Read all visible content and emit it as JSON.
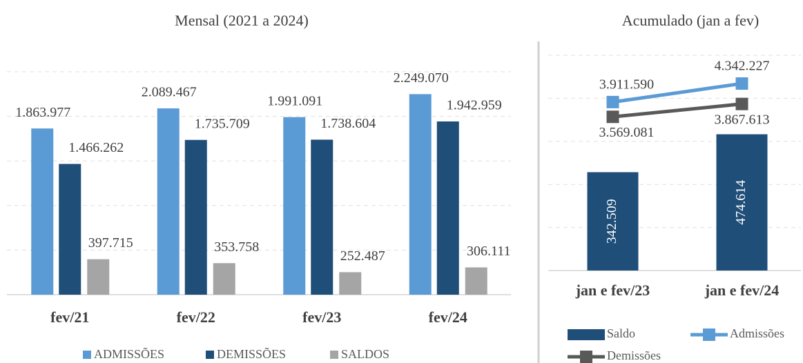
{
  "chart_data": [
    {
      "type": "bar",
      "subtitle": "Mensal (2021 a 2024)",
      "categories": [
        "fev/21",
        "fev/22",
        "fev/23",
        "fev/24"
      ],
      "series": [
        {
          "name": "ADMISSÕES",
          "color": "#5b9bd5",
          "values": [
            1863977,
            2089467,
            1991091,
            2249070
          ],
          "value_labels": [
            "1.863.977",
            "2.089.467",
            "1.991.091",
            "2.249.070"
          ]
        },
        {
          "name": "DEMISSÕES",
          "color": "#1f4e79",
          "values": [
            1466262,
            1735709,
            1738604,
            1942959
          ],
          "value_labels": [
            "1.466.262",
            "1.735.709",
            "1.738.604",
            "1.942.959"
          ]
        },
        {
          "name": "SALDOS",
          "color": "#a5a5a5",
          "values": [
            397715,
            353758,
            252487,
            306111
          ],
          "value_labels": [
            "397.715",
            "353.758",
            "252.487",
            "306.111"
          ]
        }
      ],
      "ylim": [
        0,
        2500000
      ],
      "yticks": [
        0,
        500000,
        1000000,
        1500000,
        2000000,
        2500000
      ],
      "grid": true,
      "legend": "bottom"
    },
    {
      "type": "bar-line",
      "subtitle": "Acumulado (jan a fev)",
      "categories": [
        "jan e fev/23",
        "jan e fev/24"
      ],
      "series": [
        {
          "name": "Saldo",
          "type": "bar",
          "color": "#1f4e79",
          "values": [
            342509,
            474614
          ],
          "value_labels": [
            "342.509",
            "474.614"
          ]
        },
        {
          "name": "Admissões",
          "type": "line",
          "axis": "y2",
          "color": "#5b9bd5",
          "values": [
            3911590,
            4342227
          ],
          "value_labels": [
            "3.911.590",
            "4.342.227"
          ]
        },
        {
          "name": "Demissões",
          "type": "line",
          "axis": "y2",
          "color": "#595959",
          "values": [
            3569081,
            3867613
          ],
          "value_labels": [
            "3.569.081",
            "3.867.613"
          ]
        }
      ],
      "ylim": [
        0,
        750000
      ],
      "yticks": [
        0,
        150000,
        300000,
        450000,
        600000,
        750000
      ],
      "y2lim": [
        0,
        5000000
      ],
      "y2ticks": [
        0,
        1000000,
        2000000,
        3000000,
        4000000,
        5000000
      ],
      "grid": true,
      "legend": "bottom"
    }
  ]
}
